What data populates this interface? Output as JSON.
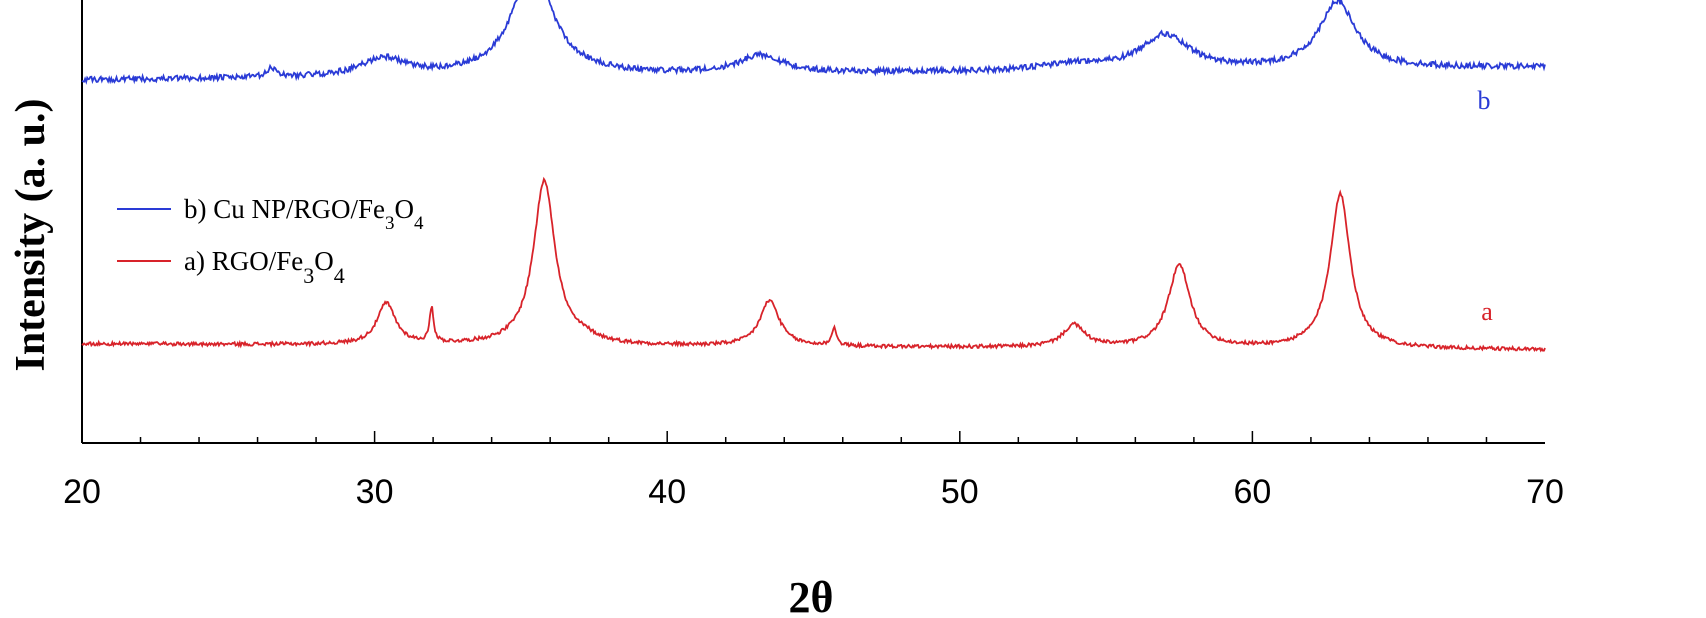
{
  "chart_data": {
    "type": "line",
    "xlabel": "2θ",
    "ylabel": "Intensity (a. u.)",
    "xlim": [
      20,
      70
    ],
    "xticks": [
      "20",
      "30",
      "40",
      "50",
      "60",
      "70"
    ],
    "y_ticks_shown": false,
    "grid": false,
    "legend_placement": "upper-left",
    "series": [
      {
        "id": "b",
        "name": "b) Cu NP/RGO/Fe3O4",
        "legend_text": {
          "prefix": "b) Cu NP/RGO/Fe",
          "sub1": "3",
          "mid": "O",
          "sub2": "4"
        },
        "curve_label": "b",
        "color": "#2a3bd6",
        "baseline_start": 0.62,
        "baseline_end": 0.72,
        "noise": 0.022,
        "peaks": [
          {
            "x": 26.5,
            "h": 0.07,
            "w": 0.18
          },
          {
            "x": 30.3,
            "h": 0.14,
            "w": 0.9
          },
          {
            "x": 35.4,
            "h": 0.82,
            "w": 0.85
          },
          {
            "x": 43.2,
            "h": 0.14,
            "w": 0.9
          },
          {
            "x": 53.9,
            "h": 0.05,
            "w": 1.2
          },
          {
            "x": 57.0,
            "h": 0.27,
            "w": 1.0
          },
          {
            "x": 62.9,
            "h": 0.52,
            "w": 0.75
          }
        ]
      },
      {
        "id": "a",
        "name": "a) RGO/Fe3O4",
        "legend_text": {
          "prefix": "a) RGO/Fe",
          "sub1": "3",
          "mid": "O",
          "sub2": "4"
        },
        "curve_label": "a",
        "color": "#d8232a",
        "baseline_start": 0.0,
        "baseline_end": -0.04,
        "noise": 0.012,
        "peaks": [
          {
            "x": 30.4,
            "h": 0.28,
            "w": 0.38
          },
          {
            "x": 31.95,
            "h": 0.24,
            "w": 0.08
          },
          {
            "x": 35.8,
            "h": 1.12,
            "w": 0.45
          },
          {
            "x": 37.2,
            "h": 0.03,
            "w": 0.5
          },
          {
            "x": 43.5,
            "h": 0.31,
            "w": 0.4
          },
          {
            "x": 45.7,
            "h": 0.12,
            "w": 0.1
          },
          {
            "x": 53.9,
            "h": 0.15,
            "w": 0.45
          },
          {
            "x": 57.5,
            "h": 0.56,
            "w": 0.45
          },
          {
            "x": 63.0,
            "h": 1.05,
            "w": 0.42
          }
        ]
      }
    ]
  }
}
